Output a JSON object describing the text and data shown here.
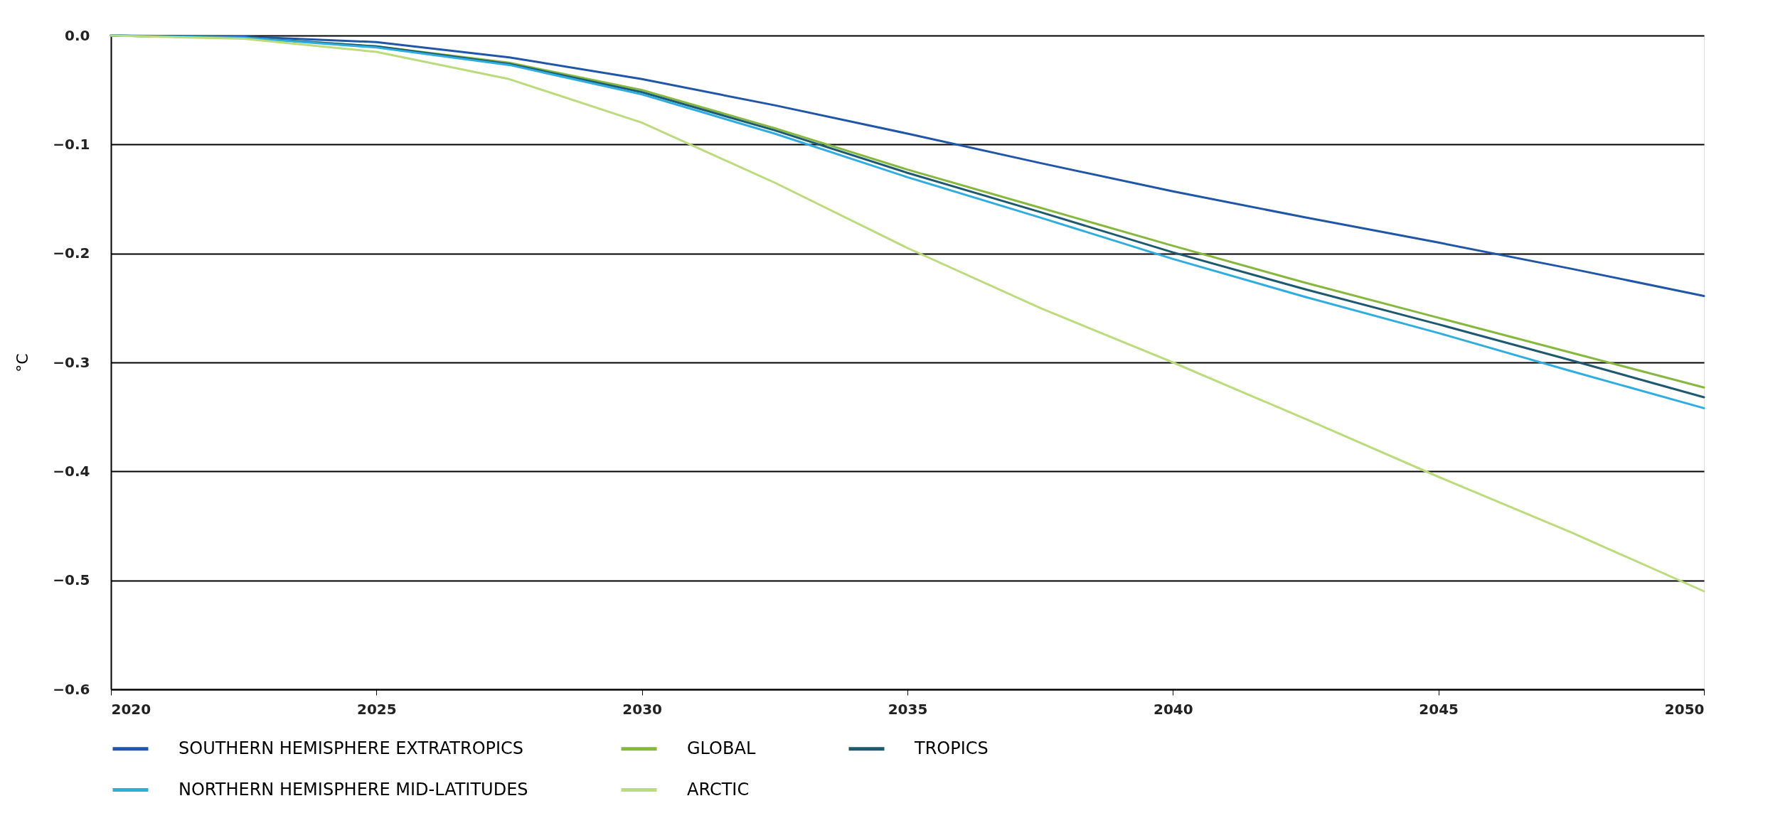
{
  "chart_data": {
    "type": "line",
    "ylabel": "°C",
    "x": [
      2020,
      2022.5,
      2025,
      2027.5,
      2030,
      2032.5,
      2035,
      2037.5,
      2040,
      2042.5,
      2045,
      2047.5,
      2050
    ],
    "series": [
      {
        "name": "SOUTHERN HEMISPHERE EXTRATROPICS",
        "color": "#1f56a8",
        "values": [
          0,
          -0.001,
          -0.006,
          -0.02,
          -0.04,
          -0.064,
          -0.09,
          -0.117,
          -0.143,
          -0.167,
          -0.19,
          -0.214,
          -0.239
        ]
      },
      {
        "name": "GLOBAL",
        "color": "#86b83e",
        "values": [
          0,
          -0.002,
          -0.01,
          -0.025,
          -0.05,
          -0.085,
          -0.123,
          -0.158,
          -0.193,
          -0.227,
          -0.259,
          -0.291,
          -0.323
        ]
      },
      {
        "name": "TROPICS",
        "color": "#1d5a70",
        "values": [
          0,
          -0.002,
          -0.01,
          -0.026,
          -0.052,
          -0.087,
          -0.126,
          -0.162,
          -0.199,
          -0.233,
          -0.265,
          -0.298,
          -0.332
        ]
      },
      {
        "name": "NORTHERN HEMISPHERE MID-LATITUDES",
        "color": "#2eaee0",
        "values": [
          0,
          -0.002,
          -0.011,
          -0.027,
          -0.054,
          -0.09,
          -0.13,
          -0.167,
          -0.205,
          -0.24,
          -0.273,
          -0.308,
          -0.342
        ]
      },
      {
        "name": "ARCTIC",
        "color": "#bcdc7c",
        "values": [
          0,
          -0.003,
          -0.015,
          -0.04,
          -0.08,
          -0.135,
          -0.195,
          -0.25,
          -0.3,
          -0.352,
          -0.405,
          -0.456,
          -0.51
        ]
      }
    ],
    "xlim": [
      2020,
      2050
    ],
    "xticks": [
      2020,
      2025,
      2030,
      2035,
      2040,
      2045,
      2050
    ],
    "ylim": [
      -0.6,
      0
    ],
    "yticks": [
      -0.6,
      -0.5,
      -0.4,
      -0.3,
      -0.2,
      -0.1,
      {
        "value": 0,
        "label": "0.0"
      }
    ],
    "grid": "y",
    "legend": "bottom",
    "marker": "none",
    "line_style": "solid"
  }
}
